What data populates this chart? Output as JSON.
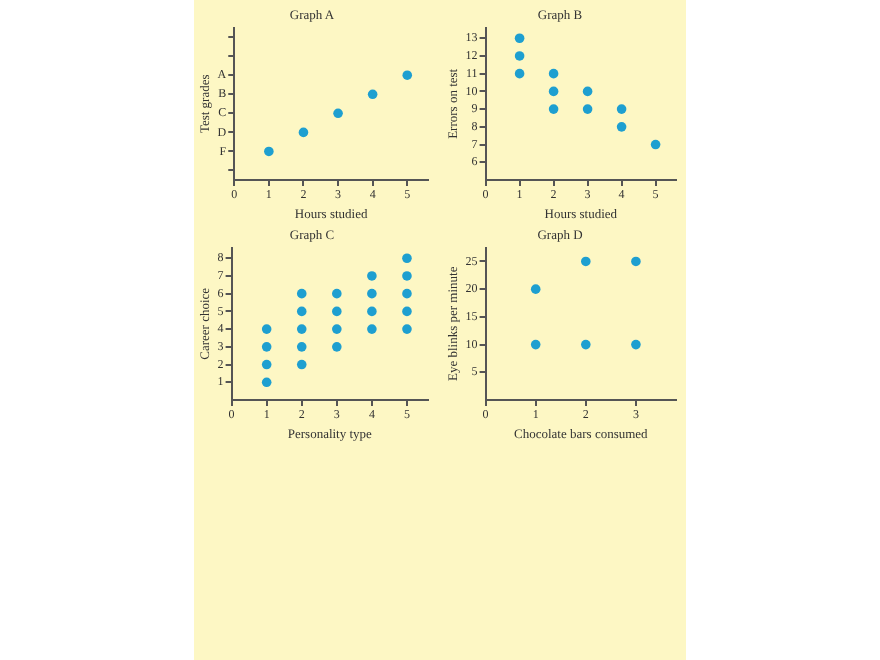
{
  "chart_data": [
    {
      "type": "scatter",
      "title": "Graph A",
      "xlabel": "Hours studied",
      "ylabel": "Test grades",
      "orientation": "horizontal",
      "categories": [
        null,
        null,
        "A",
        "B",
        "C",
        "D",
        "F",
        null
      ],
      "values": [
        null,
        null,
        5,
        4,
        3,
        2,
        1,
        null
      ],
      "color": "#1e9fd0",
      "marker": "circle",
      "grid": false,
      "legend": false,
      "xlim": [
        0,
        5.6
      ],
      "xticks": [
        0,
        1,
        2,
        3,
        4,
        5
      ]
    },
    {
      "type": "scatter",
      "title": "Graph B",
      "xlabel": "Hours studied",
      "ylabel": "Errors on test",
      "x": [
        1,
        1,
        1,
        2,
        2,
        2,
        3,
        3,
        4,
        4,
        5
      ],
      "values": [
        13,
        12,
        11,
        11,
        10,
        9,
        10,
        9,
        9,
        8,
        7
      ],
      "color": "#1e9fd0",
      "marker": "circle",
      "grid": false,
      "legend": false,
      "xlim": [
        0,
        5.6
      ],
      "xticks": [
        0,
        1,
        2,
        3,
        4,
        5
      ],
      "ylim": [
        5,
        13.6
      ],
      "yticks": [
        6,
        7,
        8,
        9,
        10,
        11,
        12,
        13
      ]
    },
    {
      "type": "scatter",
      "title": "Graph C",
      "xlabel": "Personality type",
      "ylabel": "Career choice",
      "x": [
        1,
        1,
        1,
        1,
        2,
        2,
        2,
        2,
        2,
        3,
        3,
        3,
        3,
        4,
        4,
        4,
        4,
        5,
        5,
        5,
        5,
        5
      ],
      "values": [
        1,
        2,
        3,
        4,
        2,
        3,
        4,
        5,
        6,
        3,
        4,
        5,
        6,
        4,
        5,
        6,
        7,
        4,
        5,
        6,
        7,
        8
      ],
      "color": "#1e9fd0",
      "marker": "circle",
      "grid": false,
      "legend": false,
      "xlim": [
        0,
        5.6
      ],
      "xticks": [
        0,
        1,
        2,
        3,
        4,
        5
      ],
      "ylim": [
        0,
        8.6
      ],
      "yticks": [
        1,
        2,
        3,
        4,
        5,
        6,
        7,
        8
      ]
    },
    {
      "type": "scatter",
      "title": "Graph D",
      "xlabel": "Chocolate bars consumed",
      "ylabel": "Eye blinks per minute",
      "x": [
        1,
        1,
        2,
        2,
        3,
        3
      ],
      "values": [
        20,
        10,
        25,
        10,
        25,
        10
      ],
      "color": "#1e9fd0",
      "marker": "circle",
      "grid": false,
      "legend": false,
      "xlim": [
        0,
        3.8
      ],
      "xticks": [
        0,
        1,
        2,
        3
      ],
      "ylim": [
        0,
        27.5
      ],
      "yticks": [
        5,
        10,
        15,
        20,
        25
      ]
    }
  ]
}
